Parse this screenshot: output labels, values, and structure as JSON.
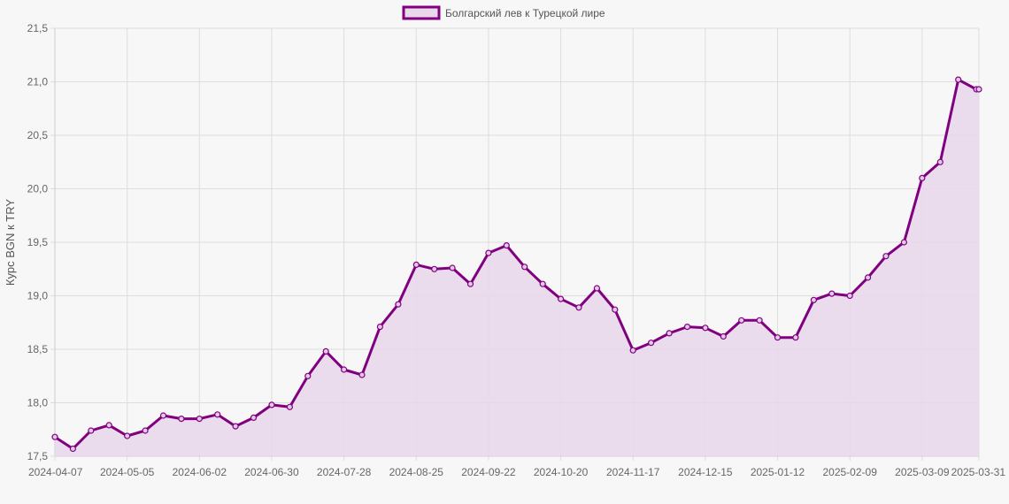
{
  "chart_data": {
    "type": "line",
    "ylabel": "Курс BGN к TRY",
    "xlabel": "",
    "ylim": [
      17.5,
      21.5
    ],
    "y_ticks": [
      "17,5",
      "18,0",
      "18,5",
      "19,0",
      "19,5",
      "20,0",
      "20,5",
      "21,0",
      "21,5"
    ],
    "x_tick_labels": [
      "2024-04-07",
      "2024-05-05",
      "2024-06-02",
      "2024-06-30",
      "2024-07-28",
      "2024-08-25",
      "2024-09-22",
      "2024-10-20",
      "2024-11-17",
      "2024-12-15",
      "2025-01-12",
      "2025-02-09",
      "2025-03-09",
      "2025-03-31"
    ],
    "grid": true,
    "legend_position": "top-center",
    "colors": {
      "line": "#800080",
      "fill": "#e8d8ea"
    },
    "x": [
      "2024-04-07",
      "2024-04-14",
      "2024-04-21",
      "2024-04-28",
      "2024-05-05",
      "2024-05-12",
      "2024-05-19",
      "2024-05-26",
      "2024-06-02",
      "2024-06-09",
      "2024-06-16",
      "2024-06-23",
      "2024-06-30",
      "2024-07-07",
      "2024-07-14",
      "2024-07-21",
      "2024-07-28",
      "2024-08-04",
      "2024-08-11",
      "2024-08-18",
      "2024-08-25",
      "2024-09-01",
      "2024-09-08",
      "2024-09-15",
      "2024-09-22",
      "2024-09-29",
      "2024-10-06",
      "2024-10-13",
      "2024-10-20",
      "2024-10-27",
      "2024-11-03",
      "2024-11-10",
      "2024-11-17",
      "2024-11-24",
      "2024-12-01",
      "2024-12-08",
      "2024-12-15",
      "2024-12-22",
      "2024-12-29",
      "2025-01-05",
      "2025-01-12",
      "2025-01-19",
      "2025-01-26",
      "2025-02-02",
      "2025-02-09",
      "2025-02-16",
      "2025-02-23",
      "2025-03-02",
      "2025-03-09",
      "2025-03-16",
      "2025-03-23",
      "2025-03-30",
      "2025-03-31"
    ],
    "series": [
      {
        "name": "Болгарский лев к Турецкой лире",
        "values": [
          17.68,
          17.57,
          17.74,
          17.79,
          17.69,
          17.74,
          17.88,
          17.85,
          17.85,
          17.89,
          17.78,
          17.86,
          17.98,
          17.96,
          18.25,
          18.48,
          18.31,
          18.26,
          18.71,
          18.92,
          19.29,
          19.25,
          19.26,
          19.11,
          19.4,
          19.47,
          19.27,
          19.11,
          18.97,
          18.89,
          19.07,
          18.87,
          18.49,
          18.56,
          18.65,
          18.71,
          18.7,
          18.62,
          18.77,
          18.77,
          18.61,
          18.61,
          18.96,
          19.02,
          19.0,
          19.17,
          19.37,
          19.5,
          20.1,
          20.25,
          21.02,
          20.93,
          20.93
        ]
      }
    ]
  }
}
